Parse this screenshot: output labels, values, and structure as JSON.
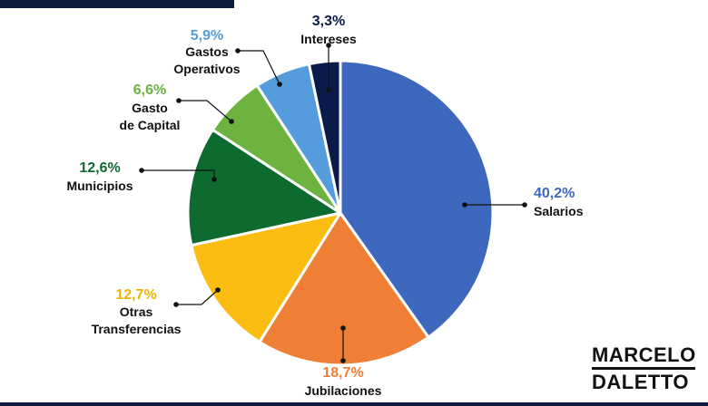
{
  "chart_data": {
    "type": "pie",
    "title": "",
    "start": "12 o'clock, clockwise",
    "slices": [
      {
        "label_lines": [
          "Salarios"
        ],
        "value": "40,2%",
        "v": 40.2,
        "color": "#3d68bd",
        "label_color": "#3d68bd"
      },
      {
        "label_lines": [
          "Jubilaciones"
        ],
        "value": "18,7%",
        "v": 18.7,
        "color": "#ef7f34",
        "label_color": "#ef7f34"
      },
      {
        "label_lines": [
          "Otras",
          "Transferencias"
        ],
        "value": "12,7%",
        "v": 12.7,
        "color": "#fcbd12",
        "label_color": "#f0b400"
      },
      {
        "label_lines": [
          "Municipios"
        ],
        "value": "12,6%",
        "v": 12.6,
        "color": "#0e6b30",
        "label_color": "#0e6b30"
      },
      {
        "label_lines": [
          "Gasto",
          "de Capital"
        ],
        "value": "6,6%",
        "v": 6.6,
        "color": "#6cb33f",
        "label_color": "#6cb33f"
      },
      {
        "label_lines": [
          "Gastos",
          "Operativos"
        ],
        "value": "5,9%",
        "v": 5.9,
        "color": "#559cdc",
        "label_color": "#559cdc"
      },
      {
        "label_lines": [
          "Intereses"
        ],
        "value": "3,3%",
        "v": 3.3,
        "color": "#0b1a4a",
        "label_color": "#0b1a4a"
      }
    ]
  },
  "logo": {
    "line1": "MARCELO",
    "line2": "DALETTO"
  }
}
